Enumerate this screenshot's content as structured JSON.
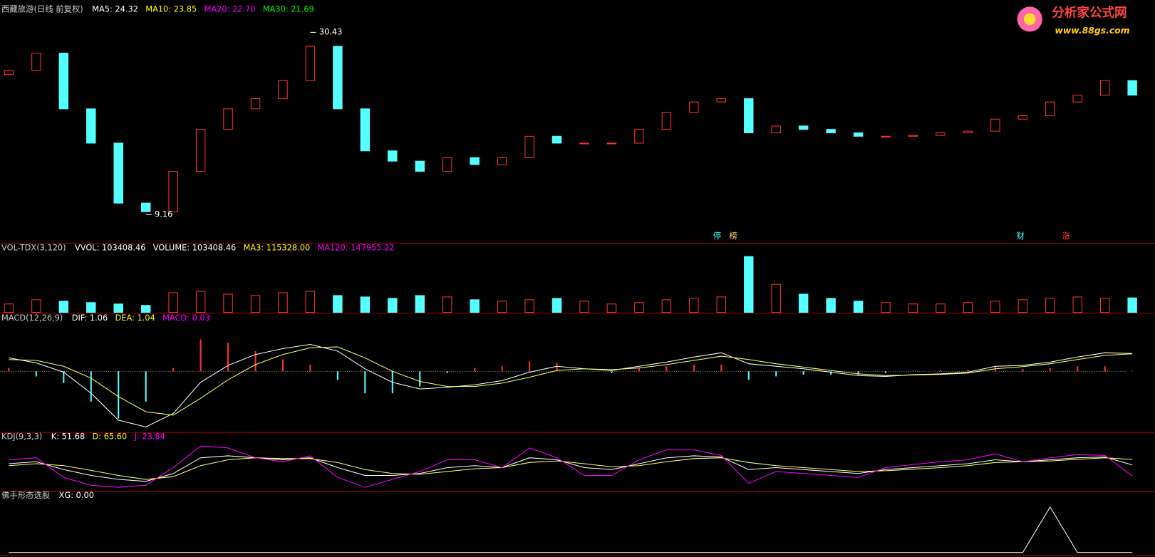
{
  "logo": {
    "name": "分析家公式网",
    "url": "www.88gs.com"
  },
  "chart_data": [
    {
      "type": "candlestick",
      "title": "西藏旅游(日线 前复权)",
      "legend": [
        {
          "text": "MA5: 24.32",
          "color": "#ffffff"
        },
        {
          "text": "MA10: 23.85",
          "color": "#ffff00"
        },
        {
          "text": "MA20: 22.70",
          "color": "#ff00ff"
        },
        {
          "text": "MA30: 21.69",
          "color": "#00ff00"
        }
      ],
      "open": [
        25.5,
        26.0,
        28.0,
        21.5,
        17.5,
        10.5,
        9.5,
        14.2,
        19.1,
        21.5,
        22.7,
        24.8,
        28.8,
        21.5,
        16.6,
        15.4,
        14.2,
        15.8,
        15.0,
        15.8,
        18.3,
        17.5,
        17.5,
        17.5,
        19.1,
        21.1,
        22.3,
        22.7,
        18.7,
        19.5,
        19.1,
        18.7,
        18.3,
        18.3,
        18.4,
        18.7,
        18.9,
        20.3,
        20.7,
        22.3,
        23.1,
        24.8
      ],
      "close": [
        26.0,
        28.0,
        21.5,
        17.5,
        10.5,
        9.5,
        14.2,
        19.1,
        21.5,
        22.7,
        24.8,
        28.8,
        21.5,
        16.6,
        15.4,
        14.2,
        15.8,
        15.0,
        15.8,
        18.3,
        17.5,
        17.5,
        17.5,
        19.1,
        21.1,
        22.3,
        22.7,
        18.7,
        19.5,
        19.1,
        18.7,
        18.3,
        18.3,
        18.4,
        18.7,
        18.9,
        20.3,
        20.7,
        22.3,
        23.1,
        24.8,
        23.1
      ],
      "high": 30.43,
      "low": 9.16,
      "up_color": "#ff3232",
      "down_color": "#54ffff",
      "ylim": [
        6,
        33
      ],
      "markers": [
        "停",
        "榜",
        "财",
        "涨"
      ]
    },
    {
      "type": "bar",
      "title": "VOL-TDX(3,120)",
      "legend": [
        {
          "text": "VVOL: 103408.46",
          "color": "#ffffff"
        },
        {
          "text": "VOLUME: 103408.46",
          "color": "#ffffff"
        },
        {
          "text": "MA3: 115328.00",
          "color": "#ffff00"
        },
        {
          "text": "MA120: 147955.22",
          "color": "#ff00ff"
        }
      ],
      "values": [
        60000,
        90000,
        80000,
        70000,
        60000,
        50000,
        140000,
        150000,
        130000,
        120000,
        140000,
        150000,
        120000,
        110000,
        100000,
        120000,
        110000,
        90000,
        80000,
        90000,
        100000,
        80000,
        60000,
        70000,
        90000,
        100000,
        110000,
        398000,
        200000,
        130000,
        100000,
        80000,
        70000,
        60000,
        60000,
        70000,
        80000,
        90000,
        100000,
        110000,
        100000,
        103408.46
      ],
      "ylim": [
        0,
        420000
      ]
    },
    {
      "type": "macd",
      "title": "MACD(12,26,9)",
      "legend": [
        {
          "text": "DIF: 1.06",
          "color": "#ffffff"
        },
        {
          "text": "DEA: 1.04",
          "color": "#ffff00"
        },
        {
          "text": "MACD: 0.03",
          "color": "#ff00ff"
        }
      ],
      "series": [
        {
          "name": "DIF",
          "color": "#ffffff",
          "values": [
            0.8,
            0.5,
            -0.05,
            -1.3,
            -2.9,
            -3.3,
            -2.5,
            -0.65,
            0.35,
            1.0,
            1.35,
            1.6,
            1.2,
            0.15,
            -0.65,
            -1.05,
            -0.95,
            -0.8,
            -0.55,
            -0.05,
            0.3,
            0.15,
            0.05,
            0.3,
            0.55,
            0.85,
            1.1,
            0.45,
            0.3,
            0.15,
            -0.05,
            -0.25,
            -0.3,
            -0.2,
            -0.15,
            -0.05,
            0.3,
            0.35,
            0.55,
            0.85,
            1.1,
            1.06
          ]
        },
        {
          "name": "DEA",
          "color": "#ffff66",
          "values": [
            0.7,
            0.65,
            0.3,
            -0.4,
            -1.5,
            -2.4,
            -2.6,
            -1.6,
            -0.5,
            0.4,
            1.0,
            1.4,
            1.45,
            0.8,
            0.0,
            -0.6,
            -0.9,
            -0.9,
            -0.7,
            -0.35,
            0.05,
            0.15,
            0.1,
            0.2,
            0.4,
            0.65,
            0.9,
            0.7,
            0.45,
            0.25,
            0.05,
            -0.15,
            -0.25,
            -0.22,
            -0.18,
            -0.1,
            0.15,
            0.28,
            0.45,
            0.7,
            0.95,
            1.04
          ]
        }
      ],
      "values": [
        0.2,
        -0.3,
        -0.7,
        -1.8,
        -2.8,
        -1.8,
        0.2,
        1.9,
        1.7,
        1.2,
        0.7,
        0.4,
        -0.5,
        -1.3,
        -1.3,
        -0.9,
        -0.1,
        0.2,
        0.3,
        0.6,
        0.5,
        0.0,
        -0.1,
        0.2,
        0.3,
        0.4,
        0.4,
        -0.5,
        -0.3,
        -0.2,
        -0.2,
        -0.2,
        -0.1,
        0.04,
        0.06,
        0.1,
        0.3,
        0.14,
        0.2,
        0.3,
        0.3,
        0.03
      ],
      "up_color": "#ff3232",
      "down_color": "#54ffff",
      "ylim": [
        -3.5,
        2.8
      ]
    },
    {
      "type": "line",
      "title": "KDJ(9,3,3)",
      "legend": [
        {
          "text": "K: 51.68",
          "color": "#ffffff"
        },
        {
          "text": "D: 65.60",
          "color": "#ffff00"
        },
        {
          "text": "J: 23.84",
          "color": "#ff00ff"
        }
      ],
      "series": [
        {
          "name": "K",
          "color": "#ffffff",
          "values": [
            55,
            60,
            40,
            25,
            15,
            10,
            30,
            70,
            75,
            70,
            65,
            70,
            45,
            25,
            25,
            30,
            45,
            50,
            45,
            70,
            65,
            45,
            40,
            55,
            70,
            75,
            72,
            40,
            45,
            40,
            35,
            30,
            40,
            45,
            50,
            55,
            65,
            60,
            65,
            70,
            72,
            51.68
          ]
        },
        {
          "name": "D",
          "color": "#ffff66",
          "values": [
            50,
            55,
            50,
            38,
            25,
            15,
            22,
            50,
            65,
            70,
            68,
            68,
            58,
            40,
            30,
            28,
            35,
            42,
            45,
            58,
            62,
            55,
            47,
            50,
            60,
            68,
            70,
            58,
            50,
            45,
            40,
            35,
            37,
            41,
            45,
            50,
            58,
            60,
            62,
            66,
            70,
            65.6
          ]
        },
        {
          "name": "J",
          "color": "#ff00ff",
          "values": [
            65,
            70,
            20,
            0,
            -5,
            0,
            45,
            100,
            95,
            70,
            60,
            75,
            20,
            -5,
            15,
            35,
            65,
            65,
            45,
            95,
            70,
            25,
            25,
            65,
            90,
            90,
            76,
            5,
            35,
            30,
            25,
            20,
            45,
            53,
            60,
            65,
            80,
            60,
            70,
            78,
            76,
            23.84
          ]
        }
      ],
      "ylim": [
        -10,
        110
      ]
    },
    {
      "type": "line",
      "title": "佛手形态选股",
      "legend": [
        {
          "text": "XG: 0.00",
          "color": "#ffffff"
        }
      ],
      "series": [
        {
          "name": "XG",
          "color": "#ffffff",
          "values": [
            0,
            0,
            0,
            0,
            0,
            0,
            0,
            0,
            0,
            0,
            0,
            0,
            0,
            0,
            0,
            0,
            0,
            0,
            0,
            0,
            0,
            0,
            0,
            0,
            0,
            0,
            0,
            0,
            0,
            0,
            0,
            0,
            0,
            0,
            0,
            0,
            0,
            0,
            1,
            0,
            0,
            0
          ]
        }
      ],
      "ylim": [
        0,
        1.1
      ]
    }
  ]
}
